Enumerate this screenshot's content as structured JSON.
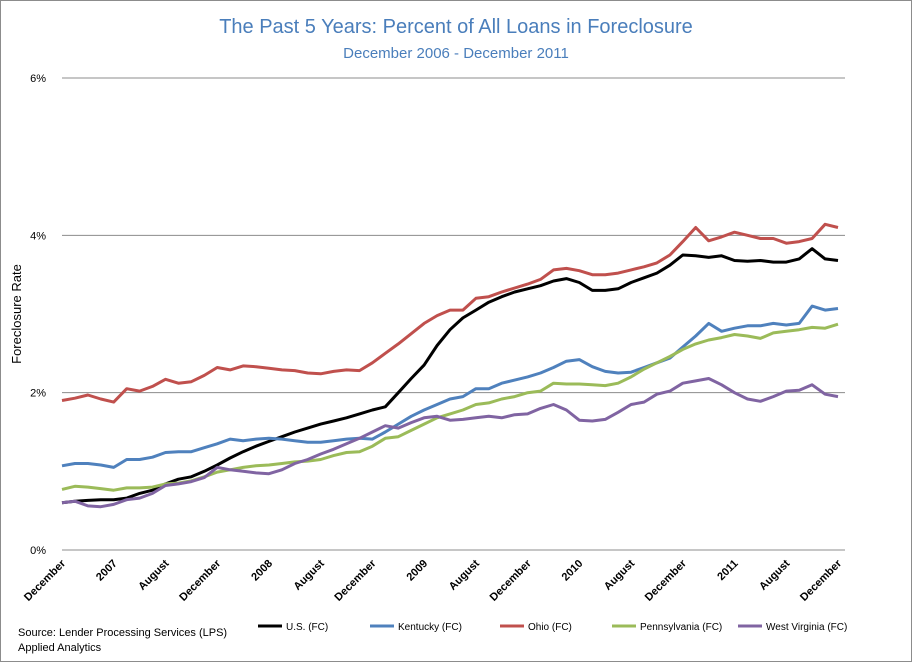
{
  "chart_data": {
    "type": "line",
    "title": "The Past 5 Years: Percent of All Loans in Foreclosure",
    "subtitle": "December 2006 - December 2011",
    "y_label": "Foreclosure Rate",
    "source_lines": [
      "Source: Lender Processing Services (LPS)",
      "Applied Analytics"
    ],
    "ylim": [
      0,
      6
    ],
    "yticks": [
      {
        "value": 0,
        "label": "0%"
      },
      {
        "value": 2,
        "label": "2%"
      },
      {
        "value": 4,
        "label": "4%"
      },
      {
        "value": 6,
        "label": "6%"
      }
    ],
    "grid": true,
    "legend": "bottom",
    "categories": [
      "December",
      null,
      null,
      null,
      "2007",
      null,
      null,
      null,
      "August",
      null,
      null,
      null,
      "December",
      null,
      null,
      null,
      "2008",
      null,
      null,
      null,
      "August",
      null,
      null,
      null,
      "December",
      null,
      null,
      null,
      "2009",
      null,
      null,
      null,
      "August",
      null,
      null,
      null,
      "December",
      null,
      null,
      null,
      "2010",
      null,
      null,
      null,
      "August",
      null,
      null,
      null,
      "December",
      null,
      null,
      null,
      "2011",
      null,
      null,
      null,
      "August",
      null,
      null,
      null,
      "December"
    ],
    "series": [
      {
        "name": "U.S. (FC)",
        "color": "#000000",
        "values": [
          0.6,
          0.62,
          0.63,
          0.64,
          0.64,
          0.66,
          0.72,
          0.76,
          0.84,
          0.9,
          0.93,
          1.0,
          1.08,
          1.17,
          1.25,
          1.32,
          1.38,
          1.44,
          1.5,
          1.55,
          1.6,
          1.64,
          1.68,
          1.73,
          1.78,
          1.82,
          2.0,
          2.18,
          2.35,
          2.6,
          2.8,
          2.95,
          3.05,
          3.15,
          3.22,
          3.28,
          3.32,
          3.36,
          3.42,
          3.45,
          3.4,
          3.3,
          3.3,
          3.32,
          3.4,
          3.46,
          3.52,
          3.62,
          3.75,
          3.74,
          3.72,
          3.74,
          3.68,
          3.67,
          3.68,
          3.66,
          3.66,
          3.7,
          3.83,
          3.7,
          3.68
        ]
      },
      {
        "name": "Kentucky (FC)",
        "color": "#4f81bd",
        "values": [
          1.07,
          1.1,
          1.1,
          1.08,
          1.05,
          1.15,
          1.15,
          1.18,
          1.24,
          1.25,
          1.25,
          1.3,
          1.35,
          1.41,
          1.39,
          1.41,
          1.42,
          1.41,
          1.39,
          1.37,
          1.37,
          1.39,
          1.41,
          1.42,
          1.41,
          1.5,
          1.6,
          1.7,
          1.78,
          1.85,
          1.92,
          1.95,
          2.05,
          2.05,
          2.12,
          2.16,
          2.2,
          2.25,
          2.32,
          2.4,
          2.42,
          2.33,
          2.27,
          2.25,
          2.26,
          2.32,
          2.38,
          2.44,
          2.58,
          2.72,
          2.88,
          2.78,
          2.82,
          2.85,
          2.85,
          2.88,
          2.86,
          2.88,
          3.1,
          3.05,
          3.07
        ]
      },
      {
        "name": "Ohio (FC)",
        "color": "#c0504d",
        "values": [
          1.9,
          1.93,
          1.97,
          1.92,
          1.88,
          2.05,
          2.02,
          2.08,
          2.17,
          2.12,
          2.14,
          2.22,
          2.32,
          2.29,
          2.34,
          2.33,
          2.31,
          2.29,
          2.28,
          2.25,
          2.24,
          2.27,
          2.29,
          2.28,
          2.38,
          2.5,
          2.62,
          2.75,
          2.88,
          2.98,
          3.05,
          3.05,
          3.2,
          3.22,
          3.28,
          3.33,
          3.38,
          3.44,
          3.56,
          3.58,
          3.55,
          3.5,
          3.5,
          3.52,
          3.56,
          3.6,
          3.65,
          3.75,
          3.92,
          4.1,
          3.93,
          3.98,
          4.04,
          4.0,
          3.96,
          3.96,
          3.9,
          3.92,
          3.96,
          4.14,
          4.1
        ]
      },
      {
        "name": "Pennsylvania (FC)",
        "color": "#9bbb59",
        "values": [
          0.77,
          0.81,
          0.8,
          0.78,
          0.76,
          0.79,
          0.79,
          0.8,
          0.84,
          0.85,
          0.88,
          0.93,
          0.99,
          1.02,
          1.05,
          1.07,
          1.08,
          1.1,
          1.12,
          1.13,
          1.15,
          1.2,
          1.24,
          1.25,
          1.32,
          1.42,
          1.44,
          1.52,
          1.6,
          1.68,
          1.73,
          1.78,
          1.85,
          1.87,
          1.92,
          1.95,
          2.0,
          2.02,
          2.12,
          2.11,
          2.11,
          2.1,
          2.09,
          2.12,
          2.2,
          2.3,
          2.38,
          2.46,
          2.55,
          2.62,
          2.67,
          2.7,
          2.74,
          2.72,
          2.69,
          2.76,
          2.78,
          2.8,
          2.83,
          2.82,
          2.87
        ]
      },
      {
        "name": "West Virginia (FC)",
        "color": "#8064a2",
        "values": [
          0.6,
          0.62,
          0.56,
          0.55,
          0.58,
          0.64,
          0.66,
          0.72,
          0.82,
          0.84,
          0.87,
          0.92,
          1.05,
          1.02,
          1.0,
          0.98,
          0.97,
          1.02,
          1.1,
          1.15,
          1.22,
          1.28,
          1.35,
          1.42,
          1.5,
          1.58,
          1.55,
          1.62,
          1.68,
          1.7,
          1.65,
          1.66,
          1.68,
          1.7,
          1.68,
          1.72,
          1.73,
          1.8,
          1.85,
          1.78,
          1.65,
          1.64,
          1.66,
          1.75,
          1.85,
          1.88,
          1.98,
          2.02,
          2.12,
          2.15,
          2.18,
          2.1,
          2.0,
          1.92,
          1.89,
          1.95,
          2.02,
          2.03,
          2.1,
          1.98,
          1.95
        ]
      }
    ]
  }
}
